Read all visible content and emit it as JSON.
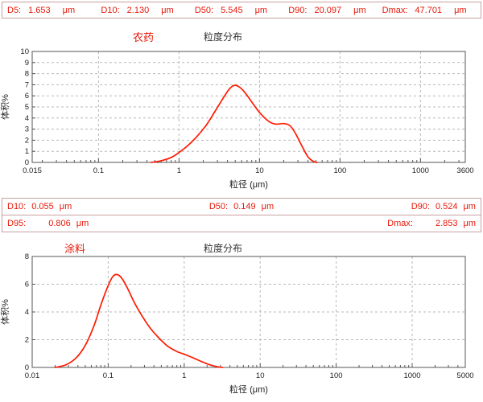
{
  "colors": {
    "text_red": "#e8190a",
    "curve": "#ff1a00",
    "bar_border": "#c9a0a0",
    "grid": "#b8b8b8"
  },
  "stats_top": {
    "items": [
      {
        "label": "D5:",
        "value": "1.653",
        "unit": "μm"
      },
      {
        "label": "D10:",
        "value": "2.130",
        "unit": "μm"
      },
      {
        "label": "D50:",
        "value": "5.545",
        "unit": "μm"
      },
      {
        "label": "D90:",
        "value": "20.097",
        "unit": "μm"
      },
      {
        "label": "Dmax:",
        "value": "47.701",
        "unit": "μm"
      }
    ]
  },
  "stats_mid": {
    "row1": [
      {
        "label": "D10:",
        "value": "0.055",
        "unit": "μm"
      },
      {
        "label": "D50:",
        "value": "0.149",
        "unit": "μm"
      },
      {
        "label": "D90:",
        "value": "0.524",
        "unit": "μm"
      }
    ],
    "row2": [
      {
        "label": "D95:",
        "value": "0.806",
        "unit": "μm"
      },
      {
        "label": "Dmax:",
        "value": "2.853",
        "unit": "μm"
      }
    ]
  },
  "chart_data": [
    {
      "type": "line",
      "sample_name": "农药",
      "title": "粒度分布",
      "xlabel": "粒径 (μm)",
      "ylabel": "体积%",
      "x_scale": "log",
      "xlim": [
        0.015,
        3600
      ],
      "ylim": [
        0,
        10
      ],
      "x_ticks": [
        0.015,
        0.1,
        1,
        10,
        100,
        1000,
        3600
      ],
      "x_tick_labels": [
        "0.015",
        "0.1",
        "1",
        "10",
        "100",
        "1000",
        "3600"
      ],
      "y_ticks": [
        0,
        1,
        2,
        3,
        4,
        5,
        6,
        7,
        8,
        9,
        10
      ],
      "grid": true,
      "legend": false,
      "line_color": "#ff1a00",
      "points": [
        [
          0.45,
          0
        ],
        [
          0.6,
          0.15
        ],
        [
          0.8,
          0.45
        ],
        [
          1,
          0.9
        ],
        [
          1.3,
          1.55
        ],
        [
          1.7,
          2.4
        ],
        [
          2.2,
          3.4
        ],
        [
          2.8,
          4.6
        ],
        [
          3.5,
          5.75
        ],
        [
          4.2,
          6.6
        ],
        [
          4.9,
          6.95
        ],
        [
          5.6,
          6.8
        ],
        [
          6.5,
          6.35
        ],
        [
          8,
          5.45
        ],
        [
          10,
          4.5
        ],
        [
          13,
          3.7
        ],
        [
          16,
          3.45
        ],
        [
          20,
          3.5
        ],
        [
          24,
          3.3
        ],
        [
          28,
          2.6
        ],
        [
          33,
          1.6
        ],
        [
          40,
          0.5
        ],
        [
          47,
          0.08
        ],
        [
          52,
          0
        ]
      ]
    },
    {
      "type": "line",
      "sample_name": "涂料",
      "title": "粒度分布",
      "xlabel": "粒径 (μm)",
      "ylabel": "体积%",
      "x_scale": "log",
      "xlim": [
        0.01,
        5000
      ],
      "ylim": [
        0,
        8
      ],
      "x_ticks": [
        0.01,
        0.1,
        1,
        10,
        100,
        1000,
        5000
      ],
      "x_tick_labels": [
        "0.01",
        "0.1",
        "1",
        "10",
        "100",
        "1000",
        "5000"
      ],
      "y_ticks": [
        0,
        2,
        4,
        6,
        8
      ],
      "grid": true,
      "legend": false,
      "line_color": "#ff1a00",
      "points": [
        [
          0.02,
          0
        ],
        [
          0.028,
          0.2
        ],
        [
          0.038,
          0.7
        ],
        [
          0.05,
          1.6
        ],
        [
          0.065,
          3.0
        ],
        [
          0.08,
          4.5
        ],
        [
          0.1,
          5.9
        ],
        [
          0.115,
          6.55
        ],
        [
          0.13,
          6.7
        ],
        [
          0.15,
          6.45
        ],
        [
          0.18,
          5.7
        ],
        [
          0.22,
          4.7
        ],
        [
          0.28,
          3.7
        ],
        [
          0.35,
          2.9
        ],
        [
          0.45,
          2.2
        ],
        [
          0.6,
          1.55
        ],
        [
          0.8,
          1.15
        ],
        [
          1,
          0.95
        ],
        [
          1.3,
          0.7
        ],
        [
          1.7,
          0.42
        ],
        [
          2.2,
          0.18
        ],
        [
          2.8,
          0.04
        ],
        [
          3.2,
          0
        ]
      ]
    }
  ]
}
